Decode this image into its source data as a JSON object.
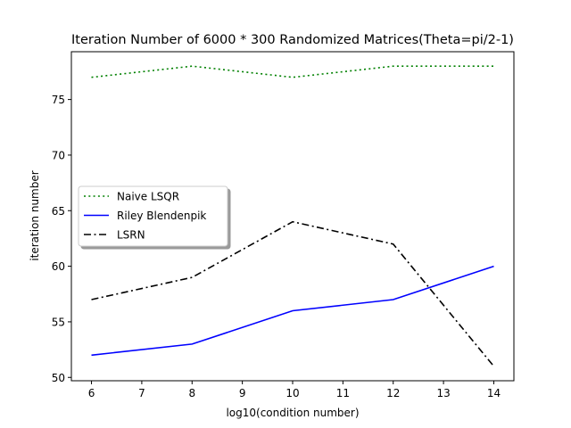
{
  "chart_data": {
    "type": "line",
    "title": "Iteration Number of 6000 * 300 Randomized Matrices(Theta=pi/2-1)",
    "xlabel": "log10(condition number)",
    "ylabel": "iteration number",
    "x": [
      6,
      8,
      10,
      12,
      14
    ],
    "xticks": [
      6,
      7,
      8,
      9,
      10,
      11,
      12,
      13,
      14
    ],
    "yticks": [
      50,
      55,
      60,
      65,
      70,
      75
    ],
    "xlim": [
      5.6,
      14.4
    ],
    "ylim": [
      49.7,
      79.3
    ],
    "grid": false,
    "legend_position": "center-left",
    "series": [
      {
        "name": "Naive LSQR",
        "values": [
          77,
          78,
          77,
          78,
          78
        ],
        "color": "#008000",
        "linestyle": "dotted"
      },
      {
        "name": "Riley Blendenpik",
        "values": [
          52,
          53,
          56,
          57,
          60
        ],
        "color": "#0000ff",
        "linestyle": "solid"
      },
      {
        "name": "LSRN",
        "values": [
          57,
          59,
          64,
          62,
          51
        ],
        "color": "#000000",
        "linestyle": "dashdot"
      }
    ]
  }
}
